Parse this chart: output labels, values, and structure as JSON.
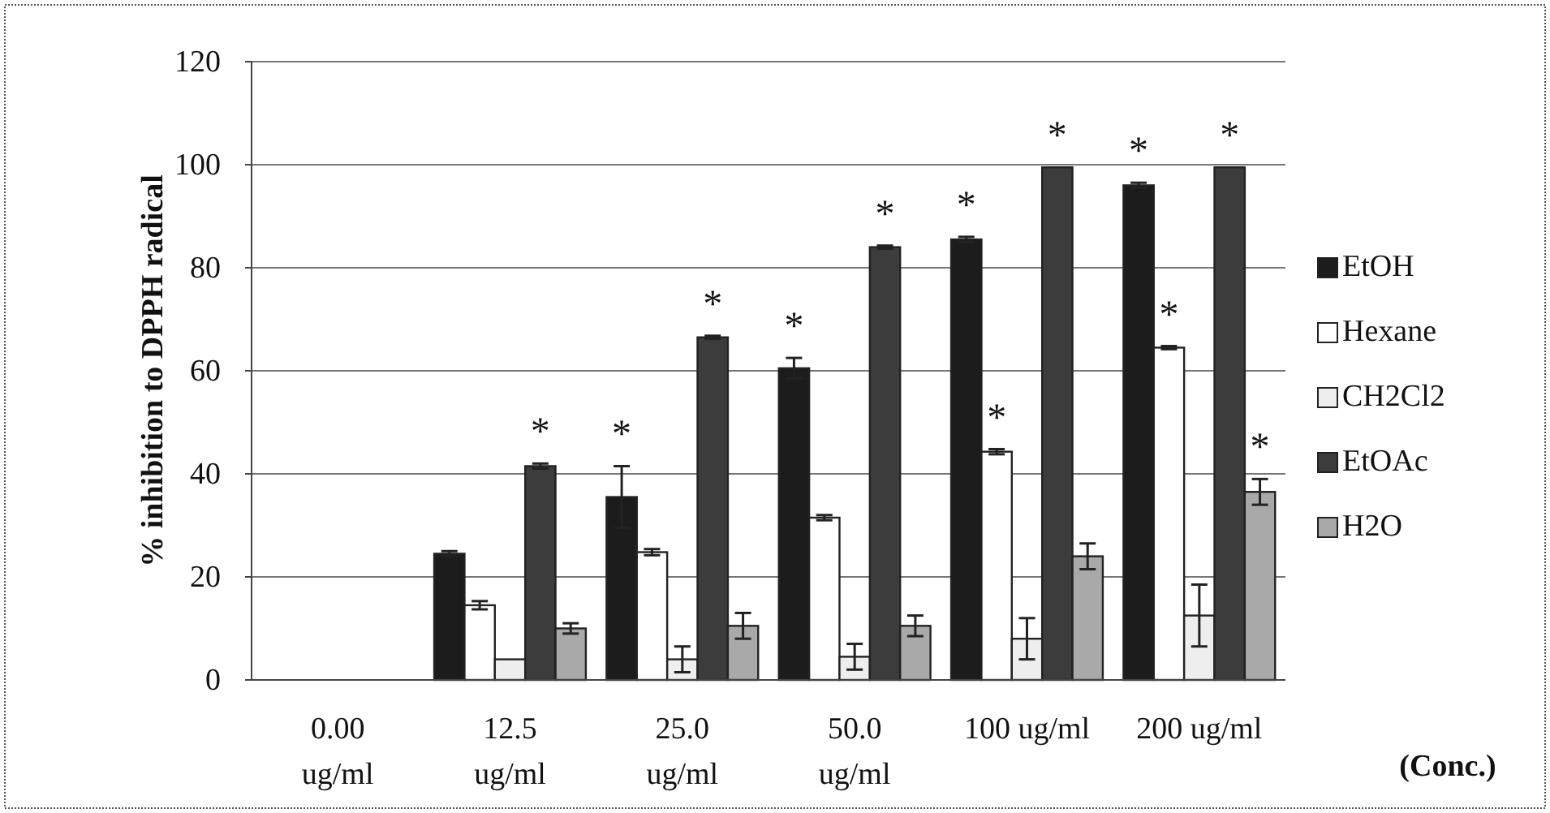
{
  "chart_data": {
    "type": "bar",
    "ylabel": "% inhibition to DPPH radical",
    "xlabel": "(Conc.)",
    "categories": [
      "0.00 ug/ml",
      "12.5 ug/ml",
      "25.0 ug/ml",
      "50.0 ug/ml",
      "100 ug/ml",
      "200 ug/ml"
    ],
    "series": [
      {
        "name": "EtOH",
        "color": "#1c1c1c",
        "values": [
          0,
          24.5,
          35.5,
          60.5,
          85.5,
          96
        ],
        "errors": [
          null,
          0.5,
          6,
          2,
          0.5,
          0.5
        ],
        "value_labels": [
          null,
          null,
          "*",
          "*",
          "*",
          "*"
        ]
      },
      {
        "name": "Hexane",
        "color": "#ffffff",
        "values": [
          0,
          14.5,
          24.8,
          31.5,
          44.3,
          64.5
        ],
        "errors": [
          null,
          0.8,
          0.6,
          0.5,
          0.5,
          0.3
        ],
        "value_labels": [
          null,
          null,
          null,
          null,
          "*",
          "*"
        ]
      },
      {
        "name": "CH2Cl2",
        "color": "#eeeeee",
        "values": [
          0,
          4,
          4,
          4.5,
          8,
          12.5
        ],
        "errors": [
          null,
          null,
          2.5,
          2.5,
          4,
          6
        ]
      },
      {
        "name": "EtOAc",
        "color": "#3c3c3c",
        "values": [
          0,
          41.5,
          66.5,
          84,
          99.5,
          99.5
        ],
        "errors": [
          null,
          0.5,
          0.3,
          0.3,
          null,
          null
        ],
        "value_labels": [
          null,
          "*",
          "*",
          "*",
          "*",
          "*"
        ]
      },
      {
        "name": "H2O",
        "color": "#a9a9a9",
        "values": [
          0,
          10,
          10.5,
          10.5,
          24,
          36.5
        ],
        "errors": [
          null,
          1,
          2.5,
          2,
          2.5,
          2.5
        ],
        "value_labels": [
          null,
          null,
          null,
          null,
          null,
          "*"
        ]
      }
    ],
    "ylim": [
      0,
      120
    ],
    "yticks": [
      0,
      20,
      40,
      60,
      80,
      100,
      120
    ],
    "grid": "y",
    "legend": "right"
  }
}
